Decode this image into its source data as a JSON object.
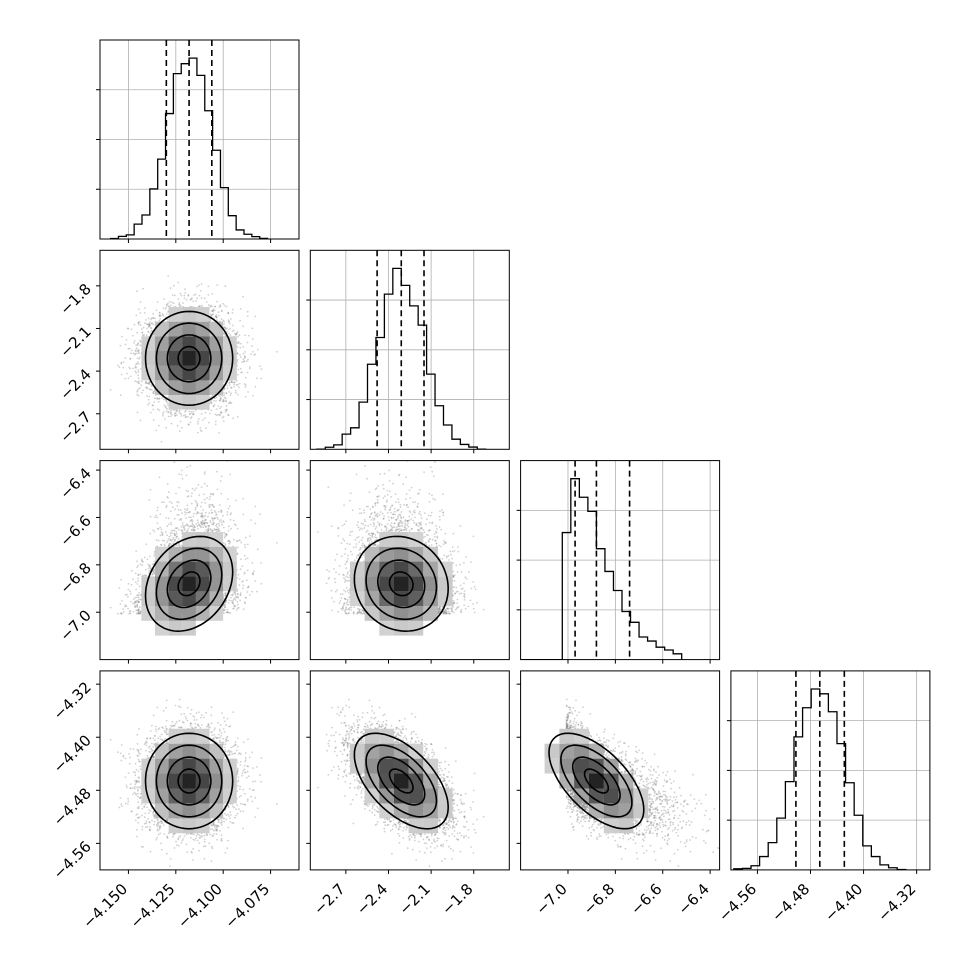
{
  "chart_data": {
    "type": "corner",
    "title": "",
    "parameters": [
      {
        "name": "",
        "range": [
          -4.165,
          -4.06
        ],
        "ticks": [
          -4.15,
          -4.125,
          -4.1,
          -4.075
        ],
        "tick_labels": [
          "−4.150",
          "−4.125",
          "−4.100",
          "−4.075"
        ],
        "median": -4.118,
        "q16": -4.13,
        "q84": -4.106,
        "sigma": 0.0115,
        "skew": 0
      },
      {
        "name": "",
        "range": [
          -2.95,
          -1.55
        ],
        "ticks": [
          -2.7,
          -2.4,
          -2.1,
          -1.8
        ],
        "tick_labels": [
          "−2.7",
          "−2.4",
          "−2.1",
          "−1.8"
        ],
        "median": -2.31,
        "q16": -2.48,
        "q84": -2.15,
        "sigma": 0.165,
        "skew": 0
      },
      {
        "name": "",
        "range": [
          -7.2,
          -6.36
        ],
        "ticks": [
          -7.0,
          -6.8,
          -6.6,
          -6.4
        ],
        "tick_labels": [
          "−7.0",
          "−6.8",
          "−6.6",
          "−6.4"
        ],
        "median": -6.88,
        "q16": -6.97,
        "q84": -6.74,
        "sigma": 0.1,
        "skew": 0.7
      },
      {
        "name": "",
        "range": [
          -4.6,
          -4.3
        ],
        "ticks": [
          -4.56,
          -4.48,
          -4.4,
          -4.32
        ],
        "tick_labels": [
          "−4.56",
          "−4.48",
          "−4.40",
          "−4.32"
        ],
        "median": -4.466,
        "q16": -4.502,
        "q84": -4.429,
        "sigma": 0.036,
        "skew": 0
      }
    ],
    "correlations": [
      [
        1,
        0,
        0.25,
        0
      ],
      [
        0,
        1,
        -0.1,
        -0.55
      ],
      [
        0.25,
        -0.1,
        1,
        -0.6
      ],
      [
        0,
        -0.55,
        -0.6,
        1
      ]
    ],
    "quantiles": [
      0.16,
      0.5,
      0.84
    ],
    "contour_levels": [
      0.5,
      1.0,
      1.5,
      2.0
    ],
    "grid": true,
    "colors": {
      "points": "#7a7a7a",
      "density_low": "#e8e8e8",
      "density_high": "#000000",
      "lines": "#000000",
      "grid": "#b0b0b0"
    }
  }
}
